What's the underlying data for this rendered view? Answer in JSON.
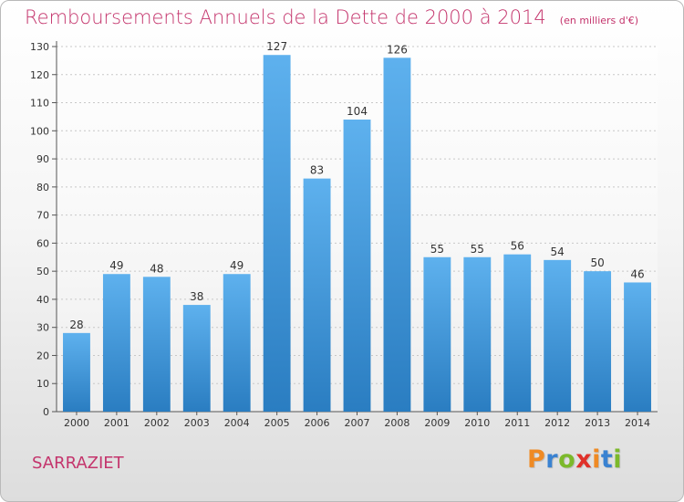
{
  "title": "Remboursements Annuels de la Dette de 2000 à 2014",
  "unit_note": "(en milliers d'€)",
  "commune": "SARRAZIET",
  "brand": "Proxiti",
  "colors": {
    "title": "#c4346c",
    "bar_top": "#5eb1ee",
    "bar_bottom": "#2a7dc1",
    "brand_letters": [
      "#ef8a24",
      "#3a82d1",
      "#7cb92b",
      "#e0312a",
      "#ef8a24",
      "#3a82d1",
      "#7cb92b"
    ]
  },
  "chart_data": {
    "type": "bar",
    "categories": [
      "2000",
      "2001",
      "2002",
      "2003",
      "2004",
      "2005",
      "2006",
      "2007",
      "2008",
      "2009",
      "2010",
      "2011",
      "2012",
      "2013",
      "2014"
    ],
    "values": [
      28,
      49,
      48,
      38,
      49,
      127,
      83,
      104,
      126,
      55,
      55,
      56,
      54,
      50,
      46
    ],
    "ylim": [
      0,
      130
    ],
    "yticks": [
      0,
      10,
      20,
      30,
      40,
      50,
      60,
      70,
      80,
      90,
      100,
      110,
      120,
      130
    ],
    "grid": true,
    "xlabel": "",
    "ylabel": ""
  }
}
